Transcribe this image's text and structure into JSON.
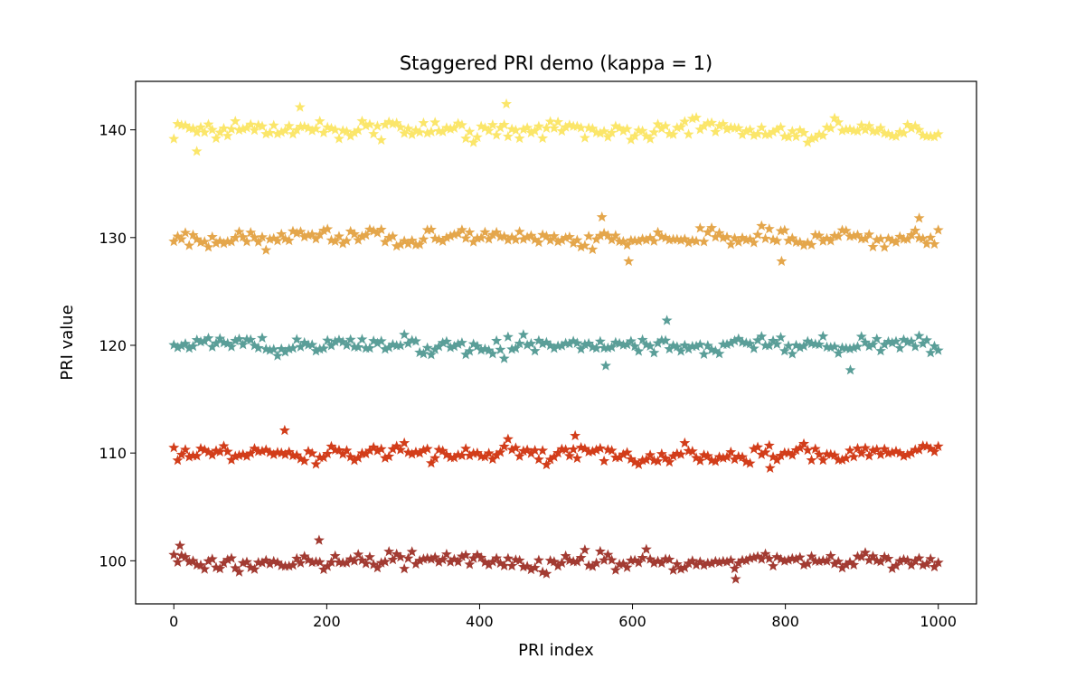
{
  "chart_data": {
    "type": "scatter",
    "title": "Staggered PRI demo (kappa = 1)",
    "xlabel": "PRI index",
    "ylabel": "PRI value",
    "xlim": [
      -50,
      1050
    ],
    "ylim": [
      96,
      144.5
    ],
    "xticks": [
      0,
      200,
      400,
      600,
      800,
      1000
    ],
    "yticks": [
      100,
      110,
      120,
      130,
      140
    ],
    "grid": false,
    "marker": "star",
    "x_range": [
      0,
      1000
    ],
    "points_per_series": 200,
    "series": [
      {
        "color": "#a23b32",
        "level": 100,
        "spread": 0.85,
        "noted_extremes": [
          {
            "x": 190,
            "y": 101.9
          },
          {
            "x": 735,
            "y": 98.3
          },
          {
            "x": 8,
            "y": 101.4
          }
        ]
      },
      {
        "color": "#d23d1a",
        "level": 110,
        "spread": 0.8,
        "noted_extremes": [
          {
            "x": 145,
            "y": 112.1
          },
          {
            "x": 525,
            "y": 111.6
          },
          {
            "x": 780,
            "y": 108.6
          }
        ]
      },
      {
        "color": "#5a9e98",
        "level": 120,
        "spread": 0.9,
        "noted_extremes": [
          {
            "x": 645,
            "y": 122.3
          },
          {
            "x": 885,
            "y": 117.7
          },
          {
            "x": 565,
            "y": 118.1
          }
        ]
      },
      {
        "color": "#e4a64b",
        "level": 130,
        "spread": 0.85,
        "noted_extremes": [
          {
            "x": 560,
            "y": 131.9
          },
          {
            "x": 595,
            "y": 127.8
          },
          {
            "x": 795,
            "y": 127.8
          },
          {
            "x": 975,
            "y": 131.8
          }
        ]
      },
      {
        "color": "#fbe66a",
        "level": 140,
        "spread": 0.85,
        "noted_extremes": [
          {
            "x": 435,
            "y": 142.4
          },
          {
            "x": 165,
            "y": 142.1
          },
          {
            "x": 30,
            "y": 138
          }
        ]
      }
    ]
  }
}
